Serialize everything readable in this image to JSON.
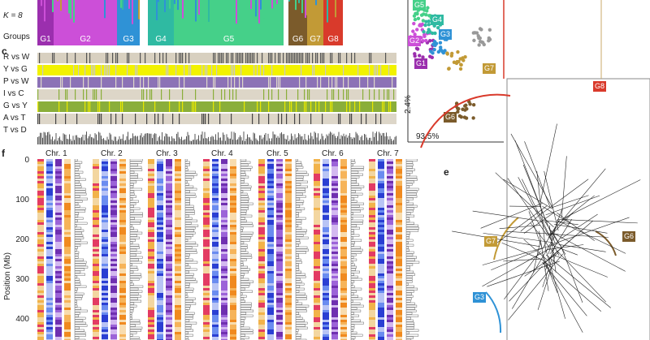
{
  "panel_labels": {
    "c": "c",
    "e": "e",
    "f": "f"
  },
  "structure": {
    "k_label": "K = 8",
    "groups_label": "Groups",
    "groups": [
      {
        "name": "G1",
        "color": "#9b2fae",
        "w": 20
      },
      {
        "name": "G2",
        "color": "#cc4fd8",
        "w": 78
      },
      {
        "name": "G3",
        "color": "#2f92d6",
        "w": 28
      },
      {
        "name": "G4",
        "color": "#2fbaa2",
        "w": 32
      },
      {
        "name": "G5",
        "color": "#45d089",
        "w": 135
      },
      {
        "name": "G6",
        "color": "#7b5b2b",
        "w": 23
      },
      {
        "name": "G7",
        "color": "#c29a36",
        "w": 20
      },
      {
        "name": "G8",
        "color": "#d93a2b",
        "w": 24
      }
    ]
  },
  "traits": {
    "rows": [
      {
        "label": "R vs W",
        "base": "#d8d0c0",
        "mark": "#555555"
      },
      {
        "label": "Y vs G",
        "base": "#f2f200",
        "mark": "#c8c8c8"
      },
      {
        "label": "P vs W",
        "base": "#8c72b6",
        "mark": "#ddd6c8"
      },
      {
        "label": "I vs C",
        "base": "#ddd6c8",
        "mark": "#8aae3a"
      },
      {
        "label": "G vs Y",
        "base": "#8aae3a",
        "mark": "#e8e800"
      },
      {
        "label": "A vs T",
        "base": "#ddd6c8",
        "mark": "#444444"
      },
      {
        "label": "T vs D",
        "base": "#ffffff",
        "mark": "#555555"
      }
    ]
  },
  "pca": {
    "y_axis_label": "2.4%",
    "x_axis_label": "93.5%",
    "groups": [
      "G1",
      "G2",
      "G3",
      "G4",
      "G5",
      "G6",
      "G7"
    ]
  },
  "tree": {
    "tags": [
      "G8",
      "G7",
      "G6",
      "G3"
    ]
  },
  "chromosomes": {
    "y_axis_label": "Position (Mb)",
    "ticks": [
      "0",
      "100",
      "200",
      "300",
      "400"
    ],
    "names": [
      "Chr. 1",
      "Chr. 2",
      "Chr. 3",
      "Chr. 4",
      "Chr. 5",
      "Chr. 6",
      "Chr. 7"
    ]
  }
}
